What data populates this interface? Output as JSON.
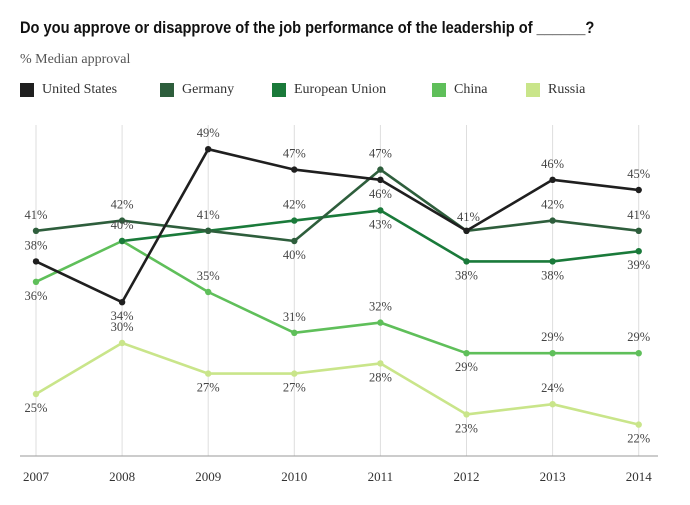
{
  "chart_data": {
    "type": "line",
    "title": "Do you approve or disapprove of the job performance of the leadership of ______?",
    "subtitle": "% Median approval",
    "x": [
      "2007",
      "2008",
      "2009",
      "2010",
      "2011",
      "2012",
      "2013",
      "2014"
    ],
    "series": [
      {
        "name": "United States",
        "color": "#1f1f1f",
        "values": [
          38,
          34,
          49,
          47,
          46,
          41,
          46,
          45
        ]
      },
      {
        "name": "Germany",
        "color": "#2e5e3c",
        "values": [
          41,
          42,
          41,
          40,
          47,
          41,
          42,
          41
        ]
      },
      {
        "name": "European Union",
        "color": "#1a7a3a",
        "values": [
          null,
          40,
          41,
          42,
          43,
          38,
          38,
          39
        ]
      },
      {
        "name": "China",
        "color": "#5fbf5a",
        "values": [
          36,
          40,
          35,
          31,
          32,
          29,
          29,
          29
        ]
      },
      {
        "name": "Russia",
        "color": "#c9e58a",
        "values": [
          25,
          30,
          27,
          27,
          28,
          23,
          24,
          22
        ]
      }
    ],
    "data_labels": {
      "United States": [
        "38%",
        "34%",
        "49%",
        "47%",
        "46%",
        "41%",
        "46%",
        "45%"
      ],
      "Germany": [
        "41%",
        "42%",
        "41%",
        "40%",
        "47%",
        "",
        "42%",
        "41%"
      ],
      "European Union": [
        "",
        "",
        "",
        "42%",
        "43%",
        "38%",
        "38%",
        "39%"
      ],
      "China": [
        "36%",
        "40%",
        "35%",
        "31%",
        "32%",
        "29%",
        "29%",
        "29%"
      ],
      "Russia": [
        "25%",
        "30%",
        "27%",
        "27%",
        "28%",
        "23%",
        "24%",
        "22%"
      ]
    },
    "ylim": [
      20,
      52
    ],
    "grid": "vertical",
    "legend_position": "top"
  }
}
